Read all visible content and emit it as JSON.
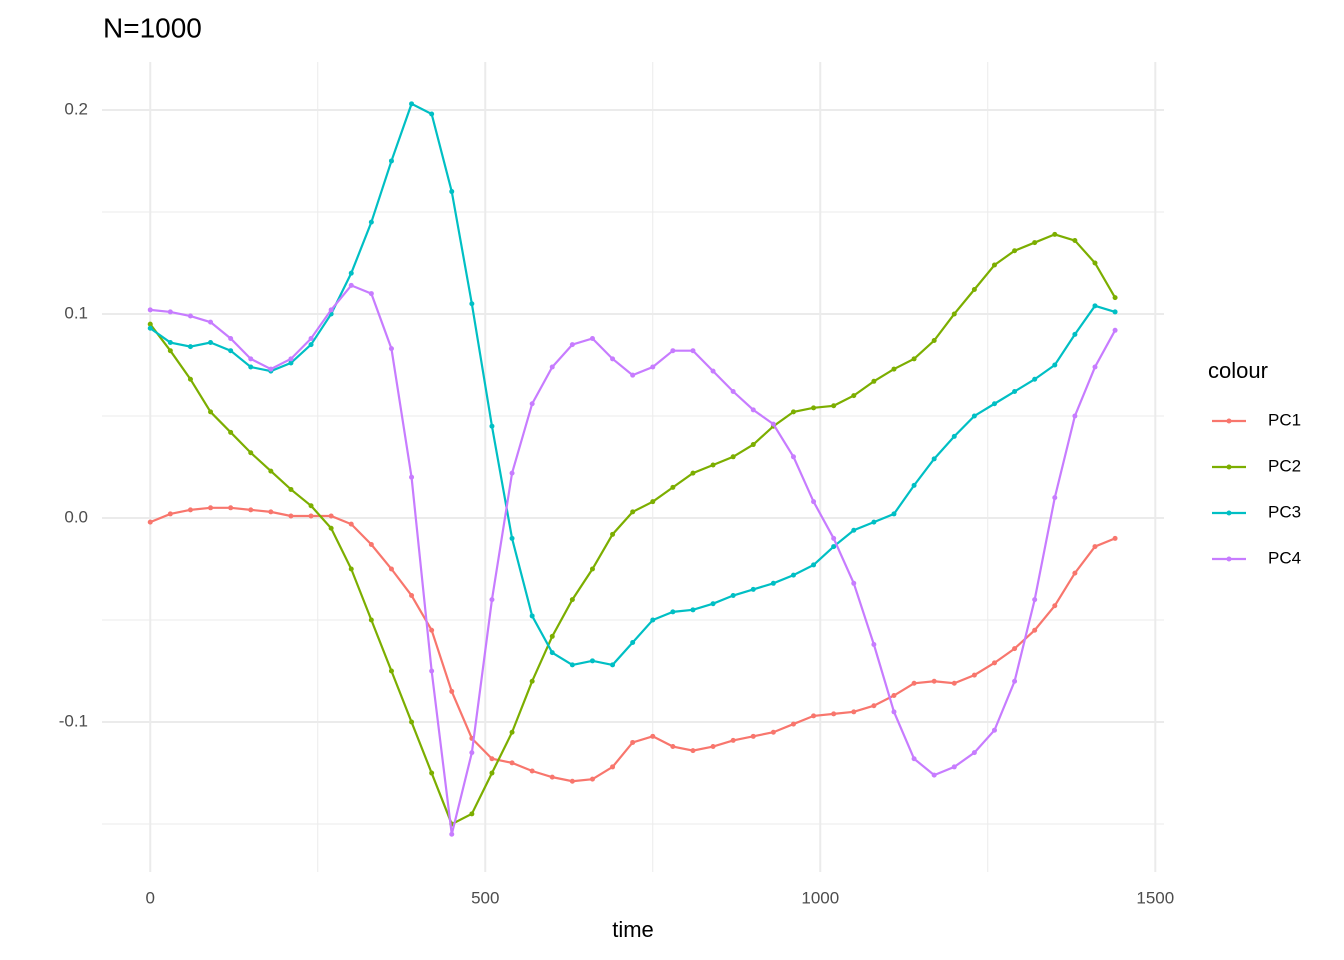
{
  "chart_data": {
    "type": "line",
    "title": "N=1000",
    "x_label": "time",
    "legend_title": "colour",
    "x": [
      0,
      30,
      60,
      90,
      120,
      150,
      180,
      210,
      240,
      270,
      300,
      330,
      360,
      390,
      420,
      450,
      480,
      510,
      540,
      570,
      600,
      630,
      660,
      690,
      720,
      750,
      780,
      810,
      840,
      870,
      900,
      930,
      960,
      990,
      1020,
      1050,
      1080,
      1110,
      1140,
      1170,
      1200,
      1230,
      1260,
      1290,
      1320,
      1350,
      1380,
      1410,
      1440
    ],
    "series": [
      {
        "name": "PC1",
        "color": "#F8766D",
        "values": [
          -0.002,
          0.002,
          0.004,
          0.005,
          0.005,
          0.004,
          0.003,
          0.001,
          0.001,
          0.001,
          -0.003,
          -0.013,
          -0.025,
          -0.038,
          -0.055,
          -0.085,
          -0.108,
          -0.118,
          -0.12,
          -0.124,
          -0.127,
          -0.129,
          -0.128,
          -0.122,
          -0.11,
          -0.107,
          -0.112,
          -0.114,
          -0.112,
          -0.109,
          -0.107,
          -0.105,
          -0.101,
          -0.097,
          -0.096,
          -0.095,
          -0.092,
          -0.087,
          -0.081,
          -0.08,
          -0.081,
          -0.077,
          -0.071,
          -0.064,
          -0.055,
          -0.043,
          -0.027,
          -0.014,
          -0.01
        ]
      },
      {
        "name": "PC2",
        "color": "#7CAE00",
        "values": [
          0.095,
          0.082,
          0.068,
          0.052,
          0.042,
          0.032,
          0.023,
          0.014,
          0.006,
          -0.005,
          -0.025,
          -0.05,
          -0.075,
          -0.1,
          -0.125,
          -0.15,
          -0.145,
          -0.125,
          -0.105,
          -0.08,
          -0.058,
          -0.04,
          -0.025,
          -0.008,
          0.003,
          0.008,
          0.015,
          0.022,
          0.026,
          0.03,
          0.036,
          0.045,
          0.052,
          0.054,
          0.055,
          0.06,
          0.067,
          0.073,
          0.078,
          0.087,
          0.1,
          0.112,
          0.124,
          0.131,
          0.135,
          0.139,
          0.136,
          0.125,
          0.108
        ]
      },
      {
        "name": "PC3",
        "color": "#00BFC4",
        "values": [
          0.093,
          0.086,
          0.084,
          0.086,
          0.082,
          0.074,
          0.072,
          0.076,
          0.085,
          0.1,
          0.12,
          0.145,
          0.175,
          0.203,
          0.198,
          0.16,
          0.105,
          0.045,
          -0.01,
          -0.048,
          -0.066,
          -0.072,
          -0.07,
          -0.072,
          -0.061,
          -0.05,
          -0.046,
          -0.045,
          -0.042,
          -0.038,
          -0.035,
          -0.032,
          -0.028,
          -0.023,
          -0.014,
          -0.006,
          -0.002,
          0.002,
          0.016,
          0.029,
          0.04,
          0.05,
          0.056,
          0.062,
          0.068,
          0.075,
          0.09,
          0.104,
          0.101
        ]
      },
      {
        "name": "PC4",
        "color": "#C77CFF",
        "values": [
          0.102,
          0.101,
          0.099,
          0.096,
          0.088,
          0.078,
          0.073,
          0.078,
          0.088,
          0.102,
          0.114,
          0.11,
          0.083,
          0.02,
          -0.075,
          -0.155,
          -0.115,
          -0.04,
          0.022,
          0.056,
          0.074,
          0.085,
          0.088,
          0.078,
          0.07,
          0.074,
          0.082,
          0.082,
          0.072,
          0.062,
          0.053,
          0.046,
          0.03,
          0.008,
          -0.01,
          -0.032,
          -0.062,
          -0.095,
          -0.118,
          -0.126,
          -0.122,
          -0.115,
          -0.104,
          -0.08,
          -0.04,
          0.01,
          0.05,
          0.074,
          0.092
        ]
      }
    ],
    "xlim": [
      -72,
      1513
    ],
    "ylim": [
      -0.1735,
      0.2235
    ],
    "xticks": [
      0,
      500,
      1000,
      1500
    ],
    "yticks": [
      -0.1,
      {
        "value": 0,
        "label": "0.0"
      },
      0.1,
      0.2
    ],
    "x_minor_grid": [
      250,
      750,
      1250
    ],
    "y_minor_grid": [
      -0.15,
      -0.05,
      0.05,
      0.15
    ],
    "grid": true
  }
}
